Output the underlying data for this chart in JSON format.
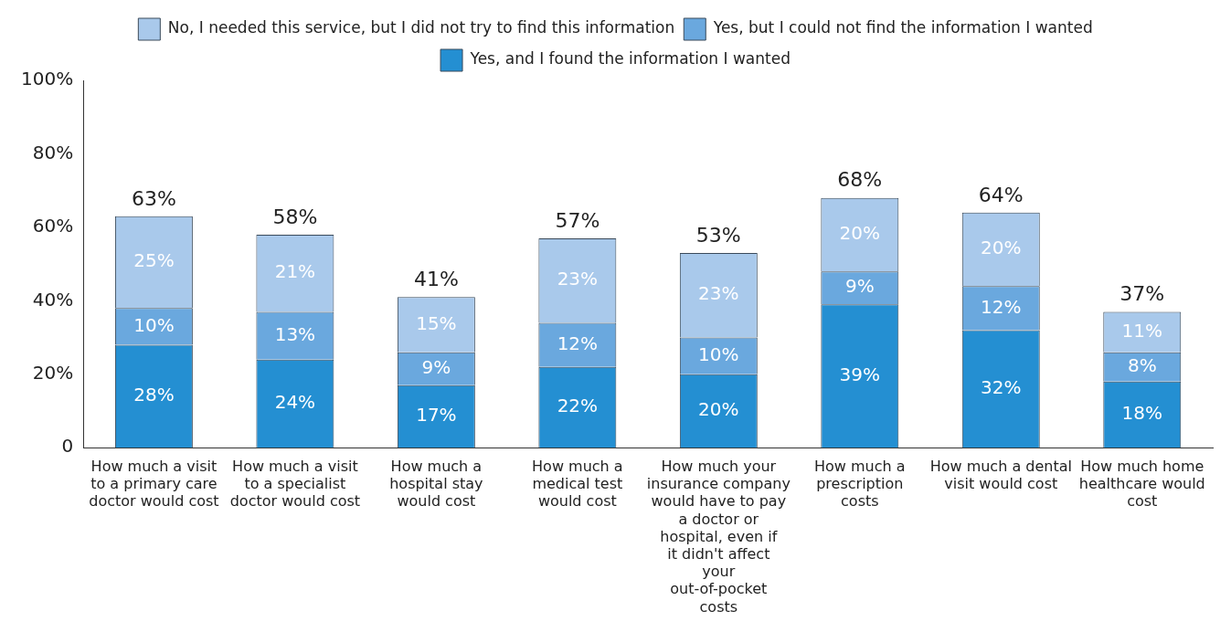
{
  "chart_data": {
    "type": "bar",
    "stacked": true,
    "categories": [
      "How much a visit to a primary care doctor would cost",
      "How much a visit to a specialist doctor would cost",
      "How much a hospital stay would cost",
      "How much a medical test would cost",
      "How much your insurance company would have to pay a doctor or hospital, even if it didn't affect your out-of-pocket costs",
      "How much a prescription costs",
      "How much a dental visit would cost",
      "How much home healthcare would cost"
    ],
    "series": [
      {
        "name": "Yes, and I found the information I wanted",
        "color": "#248fd2",
        "values": [
          28,
          24,
          17,
          22,
          20,
          39,
          32,
          18
        ],
        "value_labels": [
          "28%",
          "24%",
          "17%",
          "22%",
          "20%",
          "39%",
          "32%",
          "18%"
        ]
      },
      {
        "name": "Yes, but I could not find the information I wanted",
        "color": "#6aa8de",
        "values": [
          10,
          13,
          9,
          12,
          10,
          9,
          12,
          8
        ],
        "value_labels": [
          "10%",
          "13%",
          "9%",
          "12%",
          "10%",
          "9%",
          "12%",
          "8%"
        ]
      },
      {
        "name": "No, I needed this service, but I did not try to find this information",
        "color": "#a9c9eb",
        "values": [
          25,
          21,
          15,
          23,
          23,
          20,
          20,
          11
        ],
        "value_labels": [
          "25%",
          "21%",
          "15%",
          "23%",
          "23%",
          "20%",
          "20%",
          "11%"
        ]
      }
    ],
    "totals": [
      "63%",
      "58%",
      "41%",
      "57%",
      "53%",
      "68%",
      "64%",
      "37%"
    ],
    "ylim": [
      0,
      100
    ],
    "yticks": [
      0,
      {
        "value": 20,
        "label": "20%"
      },
      {
        "value": 40,
        "label": "40%"
      },
      {
        "value": 60,
        "label": "60%"
      },
      {
        "value": 80,
        "label": "80%"
      },
      {
        "value": 100,
        "label": "100%"
      }
    ],
    "grid": false,
    "legend": "top"
  }
}
